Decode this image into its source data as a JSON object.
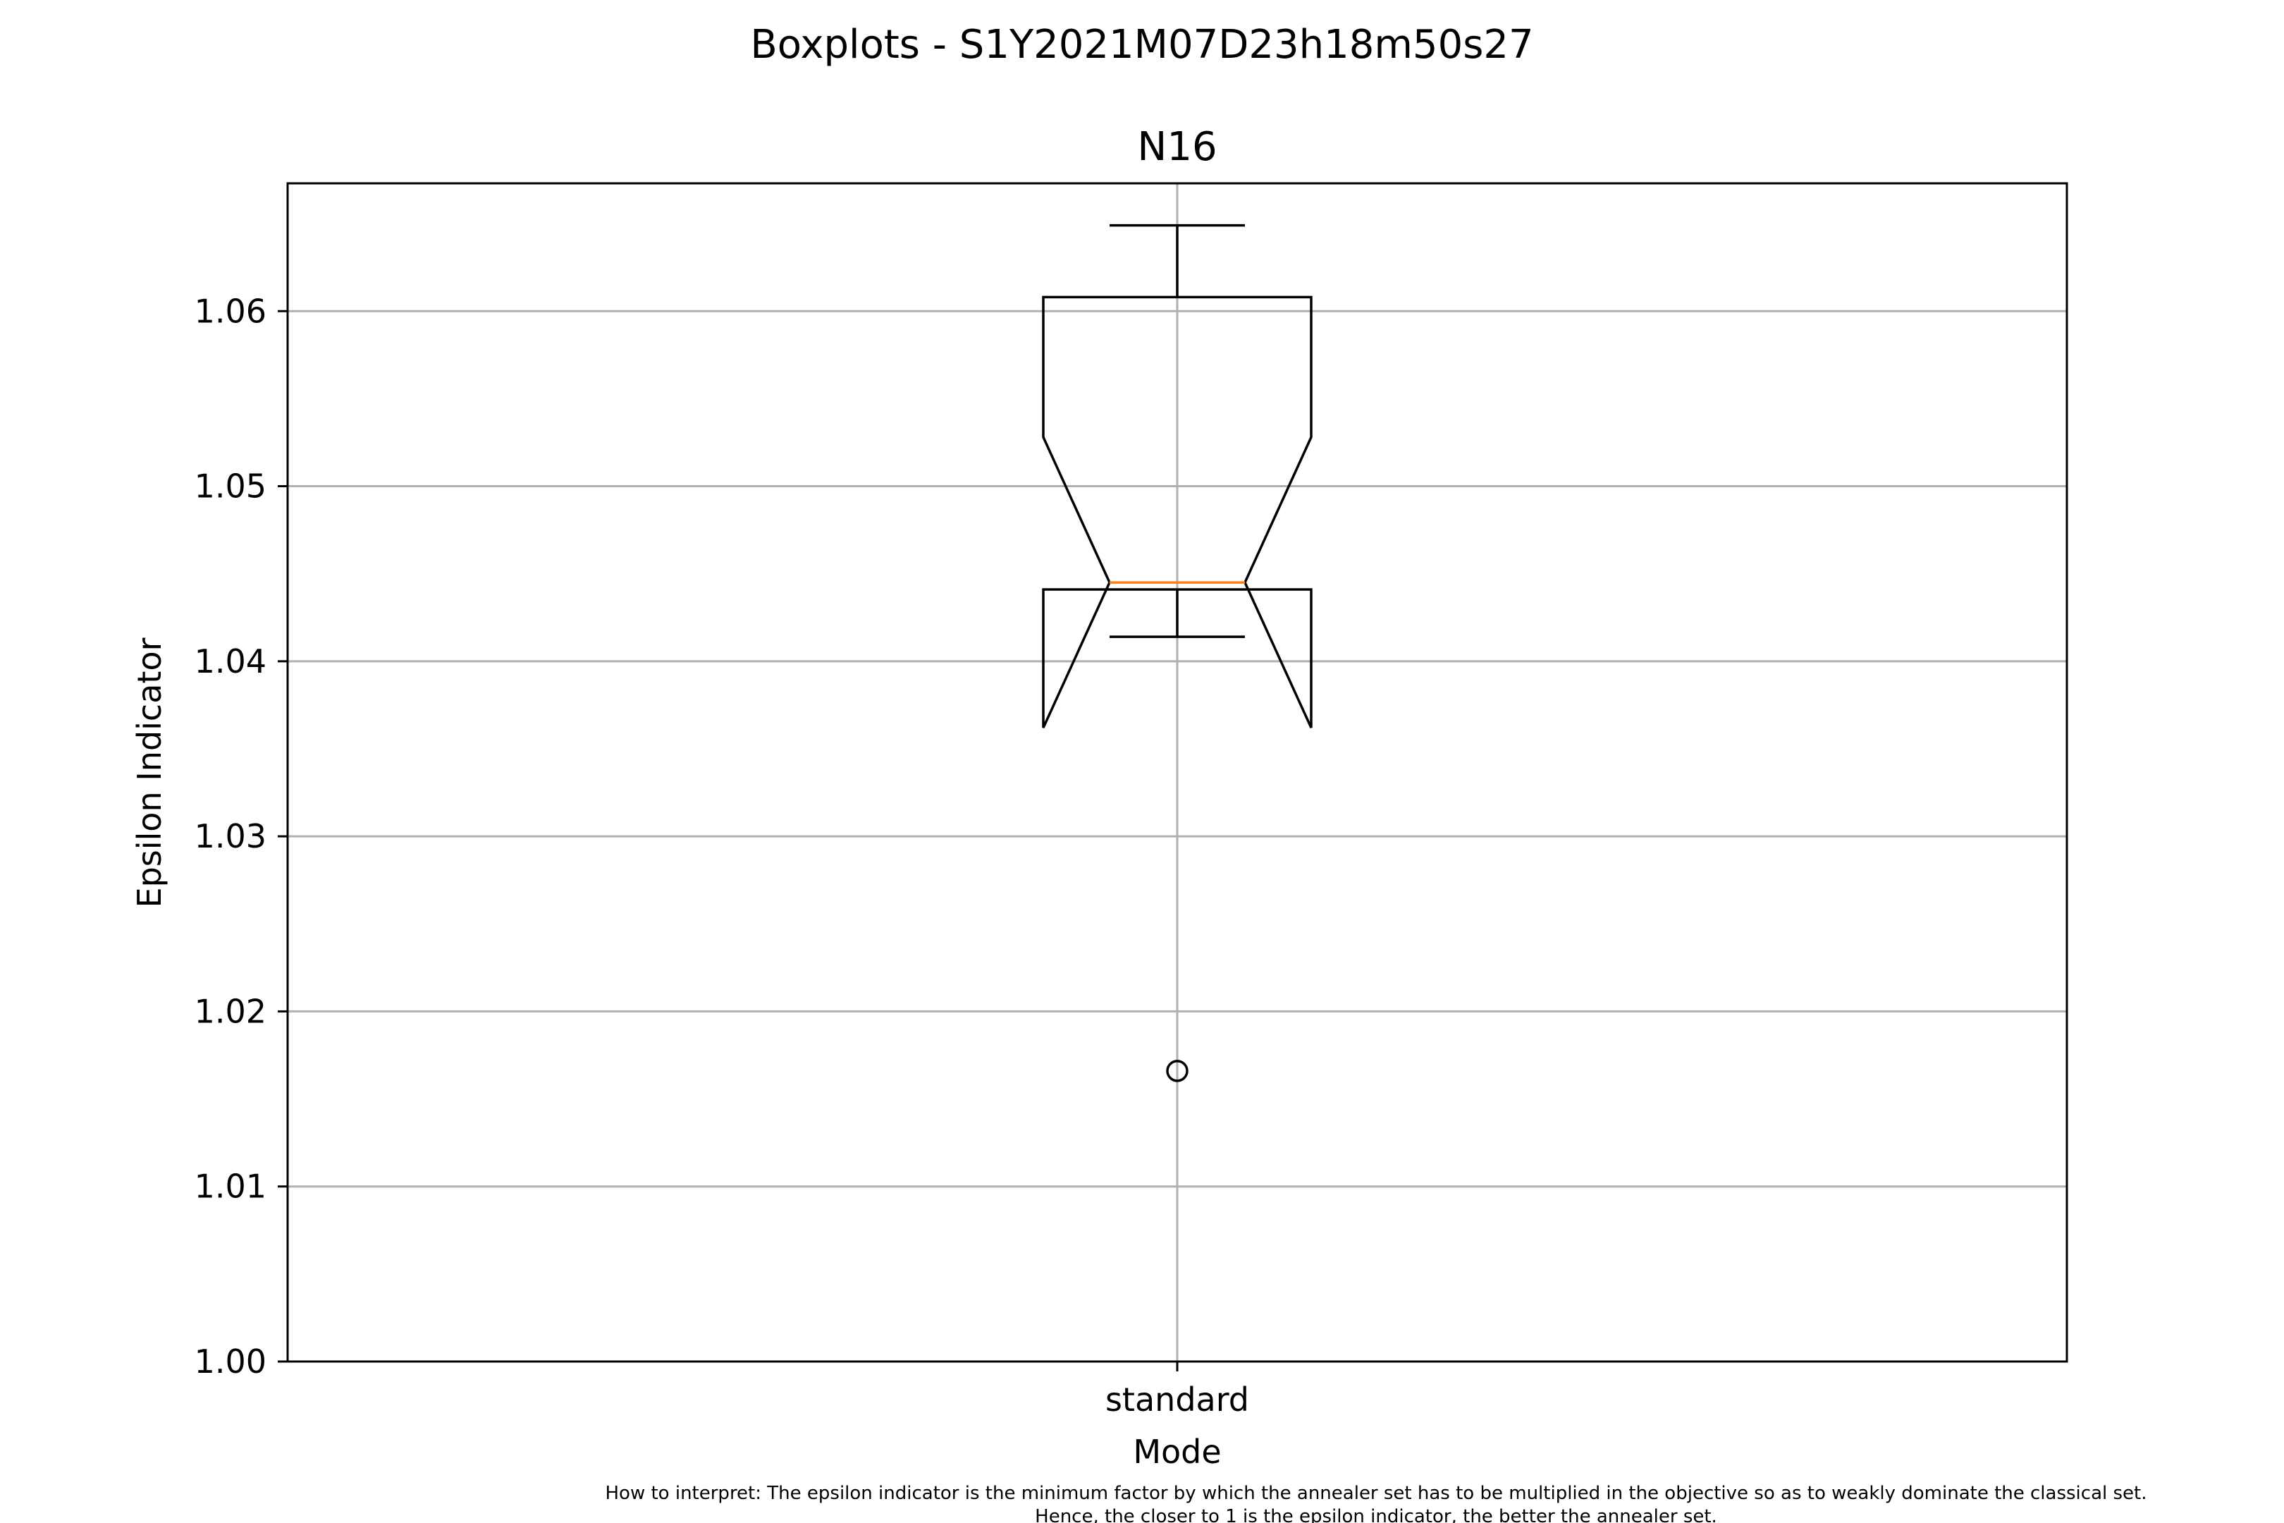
{
  "suptitle": "Boxplots - S1Y2021M07D23h18m50s27",
  "footnote": {
    "line1": "How to interpret: The epsilon indicator is the minimum factor by which the annealer set has to be multiplied in the objective so as to weakly dominate the classical set.",
    "line2": "Hence, the closer to 1 is the epsilon indicator, the better the annealer set."
  },
  "colors": {
    "box": "#000000",
    "median": "#ff7f0e",
    "grid": "#b0b0b0",
    "axes": "#000000"
  },
  "chart_data": {
    "type": "boxplot",
    "title": "N16",
    "xlabel": "Mode",
    "ylabel": "Epsilon Indicator",
    "ylim": [
      1.0,
      1.0673
    ],
    "yticks": [
      1.0,
      1.01,
      1.02,
      1.03,
      1.04,
      1.05,
      1.06
    ],
    "ytick_labels": [
      "1.00",
      "1.01",
      "1.02",
      "1.03",
      "1.04",
      "1.05",
      "1.06"
    ],
    "grid": true,
    "notched": true,
    "categories": [
      "standard"
    ],
    "boxes": [
      {
        "category": "standard",
        "whisker_low": 1.0414,
        "q1": 1.0441,
        "median": 1.0445,
        "q3": 1.0608,
        "whisker_high": 1.0649,
        "notch_low": 1.0362,
        "notch_high": 1.0528,
        "outliers": [
          1.0166
        ]
      }
    ]
  }
}
